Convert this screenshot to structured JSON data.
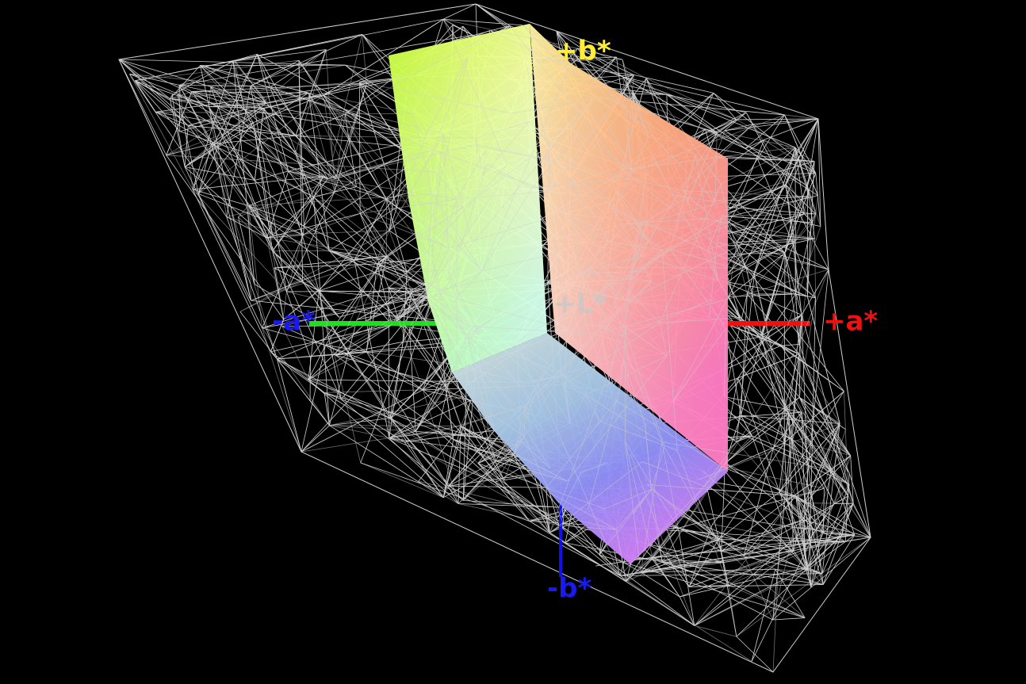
{
  "axis_labels": {
    "plus_b": "+b*",
    "minus_a": "-a*",
    "plus_a": "+a*",
    "minus_b": "-b*",
    "plus_l": "+L*"
  }
}
